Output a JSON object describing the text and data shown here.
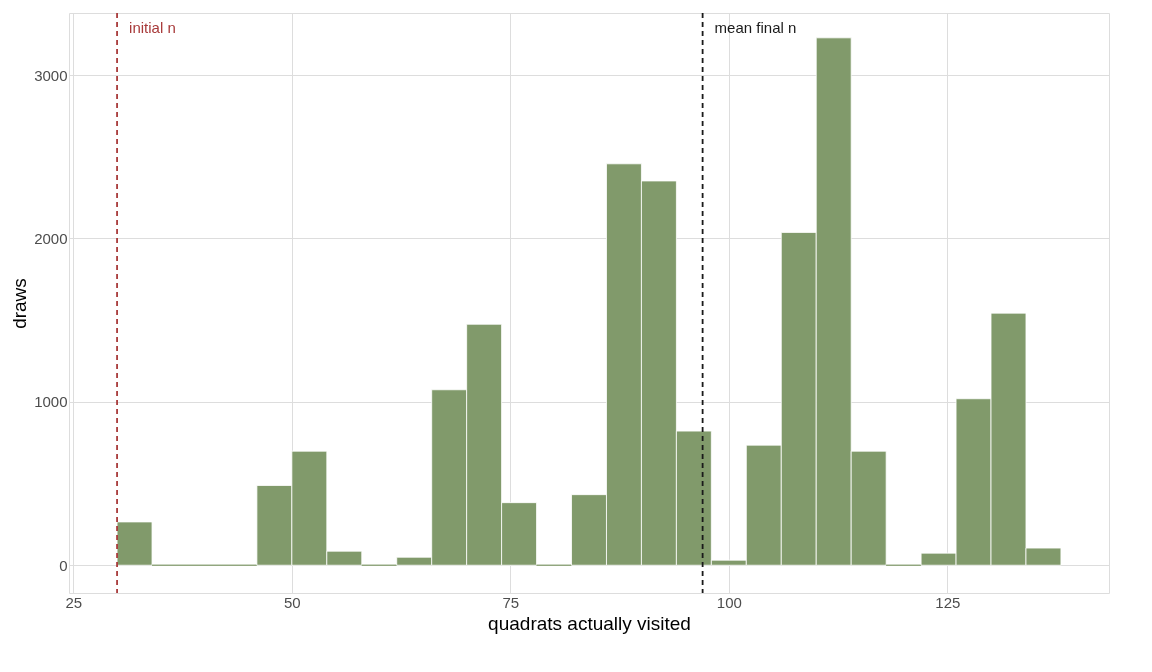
{
  "chart_data": {
    "type": "histogram",
    "xlabel": "quadrats actually visited",
    "ylabel": "draws",
    "bins": [
      30,
      34,
      38,
      42,
      46,
      50,
      54,
      58,
      62,
      66,
      70,
      74,
      78,
      82,
      86,
      90,
      94,
      98,
      102,
      106,
      110,
      114,
      118,
      122,
      126,
      130,
      134,
      138
    ],
    "values": [
      265,
      0,
      0,
      0,
      488,
      698,
      86,
      0,
      49,
      1074,
      1475,
      383,
      0,
      432,
      2457,
      2352,
      821,
      31,
      735,
      2037,
      3228,
      698,
      0,
      74,
      1019,
      1543,
      105
    ],
    "color": "#819a6b",
    "xlim": [
      24.5,
      143.5
    ],
    "xticks": [
      25,
      50,
      75,
      100,
      125
    ],
    "ylim": [
      -170,
      3380
    ],
    "yticks": [
      0,
      1000,
      2000,
      3000
    ],
    "grid": true,
    "ref_lines": [
      {
        "axis": "x",
        "value": 30,
        "label": "initial n",
        "color": "#a83a3a",
        "line_style": "dashed"
      },
      {
        "axis": "x",
        "value": 97,
        "label": "mean final n",
        "color": "#1a1a1a",
        "line_style": "dashed"
      }
    ]
  }
}
